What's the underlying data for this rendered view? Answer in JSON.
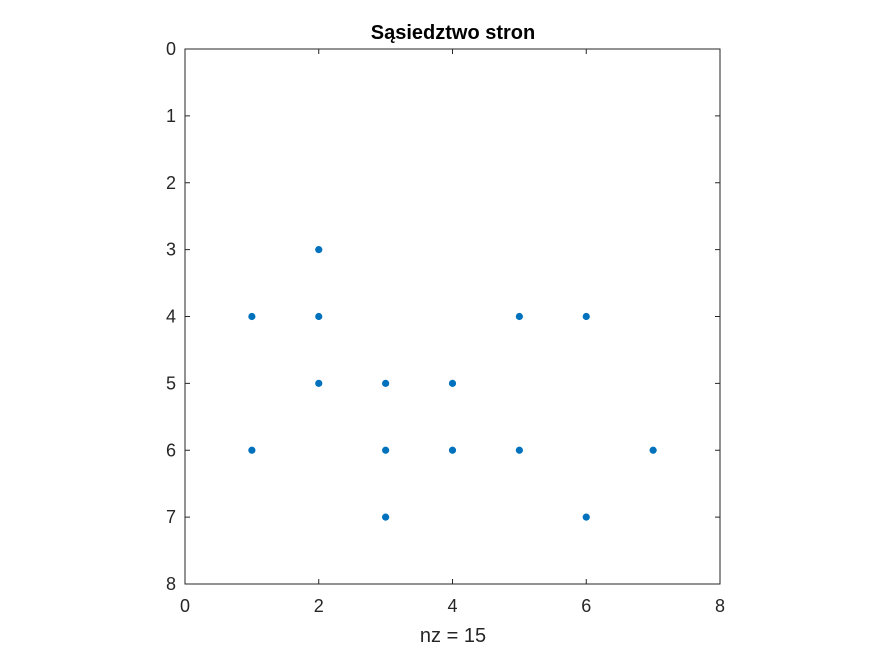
{
  "chart_data": {
    "type": "scatter",
    "title": "Sąsiedztwo stron",
    "xlabel": "nz = 15",
    "ylabel": "",
    "xlim": [
      0,
      8
    ],
    "ylim": [
      0,
      8
    ],
    "y_reversed": true,
    "grid": false,
    "box": true,
    "x_ticks": [
      0,
      2,
      4,
      6,
      8
    ],
    "x_tick_labels": [
      "0",
      "2",
      "4",
      "6",
      "8"
    ],
    "y_ticks": [
      0,
      1,
      2,
      3,
      4,
      5,
      6,
      7,
      8
    ],
    "y_tick_labels": [
      "0",
      "1",
      "2",
      "3",
      "4",
      "5",
      "6",
      "7",
      "8"
    ],
    "series": [
      {
        "color": "#0072BD",
        "points": [
          {
            "x": 1,
            "y": 4
          },
          {
            "x": 1,
            "y": 6
          },
          {
            "x": 2,
            "y": 3
          },
          {
            "x": 2,
            "y": 4
          },
          {
            "x": 2,
            "y": 5
          },
          {
            "x": 3,
            "y": 5
          },
          {
            "x": 3,
            "y": 6
          },
          {
            "x": 3,
            "y": 7
          },
          {
            "x": 4,
            "y": 5
          },
          {
            "x": 4,
            "y": 6
          },
          {
            "x": 5,
            "y": 4
          },
          {
            "x": 5,
            "y": 6
          },
          {
            "x": 6,
            "y": 4
          },
          {
            "x": 6,
            "y": 7
          },
          {
            "x": 7,
            "y": 6
          }
        ]
      }
    ]
  }
}
